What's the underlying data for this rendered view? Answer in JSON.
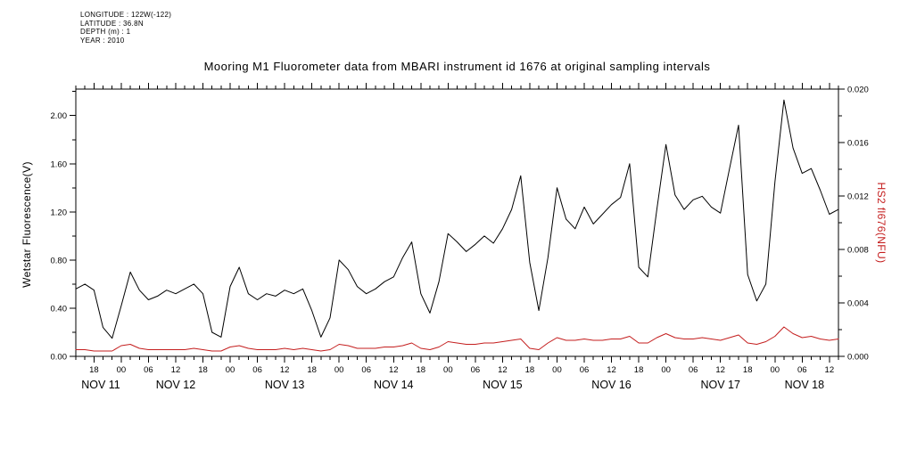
{
  "meta": {
    "lines": [
      "LONGITUDE : 122W(-122)",
      "LATITUDE : 36.8N",
      "DEPTH (m) : 1",
      "YEAR : 2010"
    ]
  },
  "title": "Mooring M1 Fluorometer data from MBARI instrument id 1676 at original sampling intervals",
  "axes": {
    "left_title": "Wetstar Fluorescence(V)",
    "right_title": "HS2 fl676(NFU)"
  },
  "colors": {
    "black": "#000000",
    "red": "#c41e1e"
  },
  "chart_data": {
    "type": "line",
    "title": "Mooring M1 Fluorometer data from MBARI instrument id 1676 at original sampling intervals",
    "x_unit": "hours since 2010-11-11 14:00",
    "xlim": [
      0,
      168
    ],
    "x_step_hours": 2,
    "grid": false,
    "legend": "none",
    "left_axis": {
      "label": "Wetstar Fluorescence(V)",
      "lim": [
        0,
        2.22
      ],
      "ticks": [
        {
          "v": 0.0,
          "label": "0.00"
        },
        {
          "v": 0.4,
          "label": "0.40"
        },
        {
          "v": 0.8,
          "label": "0.80"
        },
        {
          "v": 1.2,
          "label": "1.20"
        },
        {
          "v": 1.6,
          "label": "1.60"
        },
        {
          "v": 2.0,
          "label": "2.00"
        }
      ],
      "minor_ticks": [
        0.2,
        0.6,
        1.0,
        1.4,
        1.8,
        2.2
      ]
    },
    "right_axis": {
      "label": "HS2 fl676(NFU)",
      "lim": [
        0,
        0.02
      ],
      "ticks": [
        {
          "v": 0.0,
          "label": "0.000"
        },
        {
          "v": 0.004,
          "label": "0.004"
        },
        {
          "v": 0.008,
          "label": "0.008"
        },
        {
          "v": 0.012,
          "label": "0.012"
        },
        {
          "v": 0.016,
          "label": "0.016"
        },
        {
          "v": 0.02,
          "label": "0.020"
        }
      ],
      "minor_ticks": [
        0.002,
        0.006,
        0.01,
        0.014,
        0.018
      ]
    },
    "x_hour_ticks": [
      {
        "t": 4,
        "label": "18"
      },
      {
        "t": 10,
        "label": "00"
      },
      {
        "t": 16,
        "label": "06"
      },
      {
        "t": 22,
        "label": "12"
      },
      {
        "t": 28,
        "label": "18"
      },
      {
        "t": 34,
        "label": "00"
      },
      {
        "t": 40,
        "label": "06"
      },
      {
        "t": 46,
        "label": "12"
      },
      {
        "t": 52,
        "label": "18"
      },
      {
        "t": 58,
        "label": "00"
      },
      {
        "t": 64,
        "label": "06"
      },
      {
        "t": 70,
        "label": "12"
      },
      {
        "t": 76,
        "label": "18"
      },
      {
        "t": 82,
        "label": "00"
      },
      {
        "t": 88,
        "label": "06"
      },
      {
        "t": 94,
        "label": "12"
      },
      {
        "t": 100,
        "label": "18"
      },
      {
        "t": 106,
        "label": "00"
      },
      {
        "t": 112,
        "label": "06"
      },
      {
        "t": 118,
        "label": "12"
      },
      {
        "t": 124,
        "label": "18"
      },
      {
        "t": 130,
        "label": "00"
      },
      {
        "t": 136,
        "label": "06"
      },
      {
        "t": 142,
        "label": "12"
      },
      {
        "t": 148,
        "label": "18"
      },
      {
        "t": 154,
        "label": "00"
      },
      {
        "t": 160,
        "label": "06"
      },
      {
        "t": 166,
        "label": "12"
      }
    ],
    "x_date_ticks": [
      {
        "t": 5.5,
        "label": "NOV 11"
      },
      {
        "t": 22,
        "label": "NOV 12"
      },
      {
        "t": 46,
        "label": "NOV 13"
      },
      {
        "t": 70,
        "label": "NOV 14"
      },
      {
        "t": 94,
        "label": "NOV 15"
      },
      {
        "t": 118,
        "label": "NOV 16"
      },
      {
        "t": 142,
        "label": "NOV 17"
      },
      {
        "t": 160.5,
        "label": "NOV 18"
      }
    ],
    "series": [
      {
        "name": "Wetstar Fluorescence(V)",
        "axis": "left",
        "color": "#000000",
        "values": [
          0.56,
          0.6,
          0.55,
          0.24,
          0.15,
          0.42,
          0.7,
          0.55,
          0.47,
          0.5,
          0.55,
          0.52,
          0.56,
          0.6,
          0.52,
          0.2,
          0.16,
          0.58,
          0.74,
          0.52,
          0.47,
          0.52,
          0.5,
          0.55,
          0.52,
          0.56,
          0.38,
          0.16,
          0.32,
          0.8,
          0.72,
          0.58,
          0.52,
          0.56,
          0.62,
          0.66,
          0.82,
          0.95,
          0.52,
          0.36,
          0.62,
          1.02,
          0.95,
          0.87,
          0.93,
          1.0,
          0.94,
          1.06,
          1.22,
          1.5,
          0.78,
          0.38,
          0.82,
          1.4,
          1.14,
          1.06,
          1.24,
          1.1,
          1.18,
          1.26,
          1.32,
          1.6,
          0.74,
          0.66,
          1.22,
          1.76,
          1.34,
          1.22,
          1.3,
          1.33,
          1.24,
          1.19,
          1.56,
          1.92,
          0.68,
          0.46,
          0.6,
          1.45,
          2.13,
          1.73,
          1.52,
          1.56,
          1.38,
          1.18,
          1.22
        ]
      },
      {
        "name": "HS2 fl676(NFU)",
        "axis": "right",
        "color": "#c41e1e",
        "values": [
          0.0005,
          0.0005,
          0.0004,
          0.0004,
          0.0004,
          0.0008,
          0.0009,
          0.0006,
          0.0005,
          0.0005,
          0.0005,
          0.0005,
          0.0005,
          0.0006,
          0.0005,
          0.0004,
          0.0004,
          0.0007,
          0.0008,
          0.0006,
          0.0005,
          0.0005,
          0.0005,
          0.0006,
          0.0005,
          0.0006,
          0.0005,
          0.0004,
          0.0005,
          0.0009,
          0.0008,
          0.0006,
          0.0006,
          0.0006,
          0.0007,
          0.0007,
          0.0008,
          0.001,
          0.0006,
          0.0005,
          0.0007,
          0.0011,
          0.001,
          0.0009,
          0.0009,
          0.001,
          0.001,
          0.0011,
          0.0012,
          0.0013,
          0.0006,
          0.0005,
          0.001,
          0.0014,
          0.0012,
          0.0012,
          0.0013,
          0.0012,
          0.0012,
          0.0013,
          0.0013,
          0.0015,
          0.001,
          0.001,
          0.0014,
          0.0017,
          0.0014,
          0.0013,
          0.0013,
          0.0014,
          0.0013,
          0.0012,
          0.0014,
          0.0016,
          0.001,
          0.0009,
          0.0011,
          0.0015,
          0.0022,
          0.0017,
          0.0014,
          0.0015,
          0.0013,
          0.0012,
          0.0013
        ]
      }
    ]
  }
}
